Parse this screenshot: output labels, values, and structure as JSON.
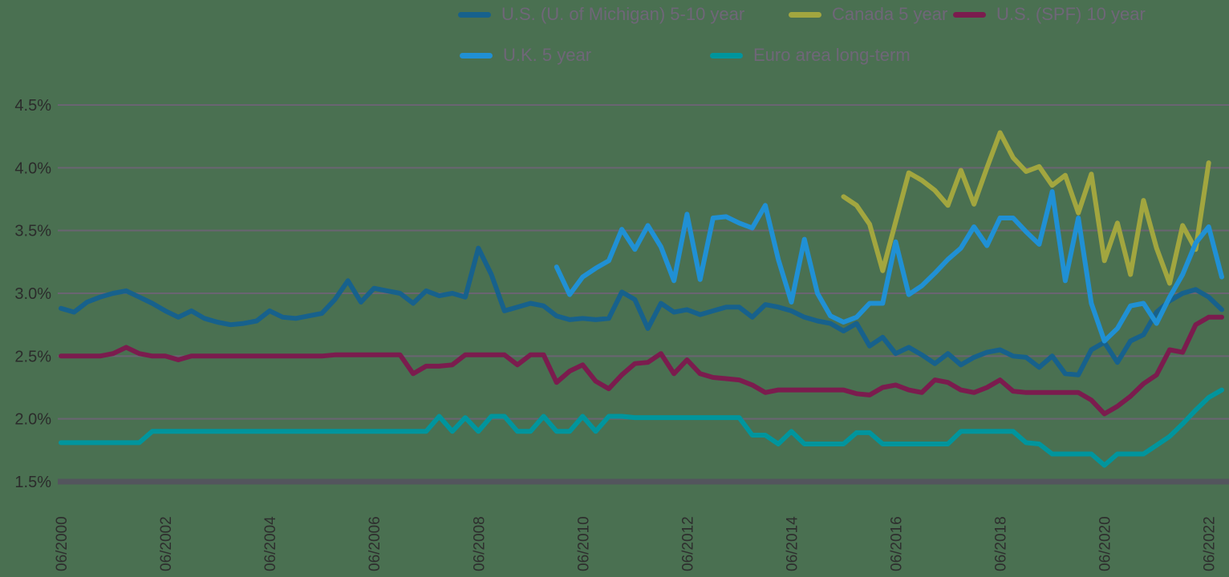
{
  "style": {
    "background": "#4a7051",
    "gridline_color": "#6a6472",
    "axis_line_color": "#53555d",
    "tick_text_color": "#2b2b2b",
    "legend_text_color": "#6f6678",
    "line_width": 6
  },
  "chart_data": {
    "type": "line",
    "title": "",
    "xlabel": "",
    "ylabel": "",
    "ylim": [
      1.5,
      4.5
    ],
    "grid": true,
    "legend_position": "top",
    "x_start": "06/2000",
    "x_step_months": 3,
    "y_ticks": [
      {
        "label": "4.5%",
        "value": 4.5
      },
      {
        "label": "4.0%",
        "value": 4.0
      },
      {
        "label": "3.5%",
        "value": 3.5
      },
      {
        "label": "3.0%",
        "value": 3.0
      },
      {
        "label": "2.5%",
        "value": 2.5
      },
      {
        "label": "2.0%",
        "value": 2.0
      },
      {
        "label": "1.5%",
        "value": 1.5
      }
    ],
    "x_ticks": [
      {
        "label": "06/2000",
        "idx": 0
      },
      {
        "label": "06/2002",
        "idx": 8
      },
      {
        "label": "06/2004",
        "idx": 16
      },
      {
        "label": "06/2006",
        "idx": 24
      },
      {
        "label": "06/2008",
        "idx": 32
      },
      {
        "label": "06/2010",
        "idx": 40
      },
      {
        "label": "06/2012",
        "idx": 48
      },
      {
        "label": "06/2014",
        "idx": 56
      },
      {
        "label": "06/2016",
        "idx": 64
      },
      {
        "label": "06/2018",
        "idx": 72
      },
      {
        "label": "06/2020",
        "idx": 80
      },
      {
        "label": "06/2022",
        "idx": 88
      }
    ],
    "series": [
      {
        "name": "U.S. (U. of Michigan) 5-10 year",
        "slug": "us-michigan-5-10-year",
        "color": "#17618c",
        "values": [
          2.88,
          2.85,
          2.93,
          2.97,
          3.0,
          3.02,
          2.97,
          2.92,
          2.86,
          2.81,
          2.86,
          2.8,
          2.77,
          2.75,
          2.76,
          2.78,
          2.86,
          2.81,
          2.8,
          2.82,
          2.84,
          2.95,
          3.1,
          2.93,
          3.04,
          3.02,
          3.0,
          2.92,
          3.02,
          2.98,
          3.0,
          2.97,
          3.36,
          3.15,
          2.86,
          2.89,
          2.92,
          2.9,
          2.82,
          2.79,
          2.8,
          2.79,
          2.8,
          3.01,
          2.95,
          2.72,
          2.92,
          2.85,
          2.87,
          2.83,
          2.86,
          2.89,
          2.89,
          2.81,
          2.91,
          2.89,
          2.86,
          2.81,
          2.78,
          2.76,
          2.7,
          2.76,
          2.58,
          2.65,
          2.52,
          2.57,
          2.51,
          2.44,
          2.52,
          2.43,
          2.49,
          2.53,
          2.55,
          2.5,
          2.49,
          2.41,
          2.5,
          2.36,
          2.35,
          2.55,
          2.61,
          2.45,
          2.62,
          2.67,
          2.85,
          2.94,
          3.0,
          3.03,
          2.97,
          2.87
        ]
      },
      {
        "name": "Canada 5 year",
        "slug": "canada-5-year",
        "color": "#a2a63f",
        "values": [
          null,
          null,
          null,
          null,
          null,
          null,
          null,
          null,
          null,
          null,
          null,
          null,
          null,
          null,
          null,
          null,
          null,
          null,
          null,
          null,
          null,
          null,
          null,
          null,
          null,
          null,
          null,
          null,
          null,
          null,
          null,
          null,
          null,
          null,
          null,
          null,
          null,
          null,
          null,
          null,
          null,
          null,
          null,
          null,
          null,
          null,
          null,
          null,
          null,
          null,
          null,
          null,
          null,
          null,
          null,
          null,
          null,
          null,
          null,
          null,
          3.77,
          3.7,
          3.55,
          3.18,
          3.57,
          3.96,
          3.9,
          3.82,
          3.7,
          3.98,
          3.71,
          4.0,
          4.28,
          4.08,
          3.97,
          4.01,
          3.86,
          3.94,
          3.64,
          3.95,
          3.26,
          3.56,
          3.15,
          3.74,
          3.36,
          3.08,
          3.54,
          3.35,
          4.04,
          null
        ]
      },
      {
        "name": "U.S. (SPF) 10 year",
        "slug": "us-spf-10-year",
        "color": "#7b1c4e",
        "values": [
          2.5,
          2.5,
          2.5,
          2.5,
          2.52,
          2.57,
          2.52,
          2.5,
          2.5,
          2.47,
          2.5,
          2.5,
          2.5,
          2.5,
          2.5,
          2.5,
          2.5,
          2.5,
          2.5,
          2.5,
          2.5,
          2.51,
          2.51,
          2.51,
          2.51,
          2.51,
          2.51,
          2.36,
          2.42,
          2.42,
          2.43,
          2.51,
          2.51,
          2.51,
          2.51,
          2.43,
          2.51,
          2.51,
          2.29,
          2.38,
          2.43,
          2.3,
          2.24,
          2.35,
          2.44,
          2.45,
          2.52,
          2.36,
          2.47,
          2.36,
          2.33,
          2.32,
          2.31,
          2.27,
          2.21,
          2.23,
          2.23,
          2.23,
          2.23,
          2.23,
          2.23,
          2.2,
          2.19,
          2.25,
          2.27,
          2.23,
          2.21,
          2.31,
          2.29,
          2.23,
          2.21,
          2.25,
          2.31,
          2.22,
          2.21,
          2.21,
          2.21,
          2.21,
          2.21,
          2.15,
          2.04,
          2.1,
          2.18,
          2.28,
          2.35,
          2.55,
          2.53,
          2.75,
          2.81,
          2.81
        ]
      },
      {
        "name": "U.K. 5 year",
        "slug": "uk-5-year",
        "color": "#2090d4",
        "values": [
          null,
          null,
          null,
          null,
          null,
          null,
          null,
          null,
          null,
          null,
          null,
          null,
          null,
          null,
          null,
          null,
          null,
          null,
          null,
          null,
          null,
          null,
          null,
          null,
          null,
          null,
          null,
          null,
          null,
          null,
          null,
          null,
          null,
          null,
          null,
          null,
          null,
          null,
          3.21,
          2.99,
          3.13,
          3.2,
          3.26,
          3.51,
          3.35,
          3.54,
          3.37,
          3.1,
          3.63,
          3.11,
          3.6,
          3.61,
          3.56,
          3.52,
          3.7,
          3.27,
          2.93,
          3.43,
          3.0,
          2.82,
          2.77,
          2.81,
          2.92,
          2.92,
          3.41,
          2.99,
          3.06,
          3.16,
          3.27,
          3.36,
          3.53,
          3.38,
          3.6,
          3.6,
          3.49,
          3.39,
          3.81,
          3.1,
          3.6,
          2.92,
          2.62,
          2.72,
          2.9,
          2.92,
          2.76,
          2.97,
          3.15,
          3.4,
          3.53,
          3.13
        ]
      },
      {
        "name": "Euro area long-term",
        "slug": "euro-area-long-term",
        "color": "#00959d",
        "values": [
          1.81,
          1.81,
          1.81,
          1.81,
          1.81,
          1.81,
          1.81,
          1.9,
          1.9,
          1.9,
          1.9,
          1.9,
          1.9,
          1.9,
          1.9,
          1.9,
          1.9,
          1.9,
          1.9,
          1.9,
          1.9,
          1.9,
          1.9,
          1.9,
          1.9,
          1.9,
          1.9,
          1.9,
          1.9,
          2.02,
          1.9,
          2.01,
          1.9,
          2.02,
          2.02,
          1.9,
          1.9,
          2.02,
          1.9,
          1.9,
          2.02,
          1.9,
          2.02,
          2.02,
          2.01,
          2.01,
          2.01,
          2.01,
          2.01,
          2.01,
          2.01,
          2.01,
          2.01,
          1.87,
          1.87,
          1.8,
          1.9,
          1.8,
          1.8,
          1.8,
          1.8,
          1.89,
          1.89,
          1.8,
          1.8,
          1.8,
          1.8,
          1.8,
          1.8,
          1.9,
          1.9,
          1.9,
          1.9,
          1.9,
          1.81,
          1.8,
          1.72,
          1.72,
          1.72,
          1.72,
          1.63,
          1.72,
          1.72,
          1.72,
          1.79,
          1.86,
          1.96,
          2.07,
          2.17,
          2.23
        ]
      }
    ]
  }
}
